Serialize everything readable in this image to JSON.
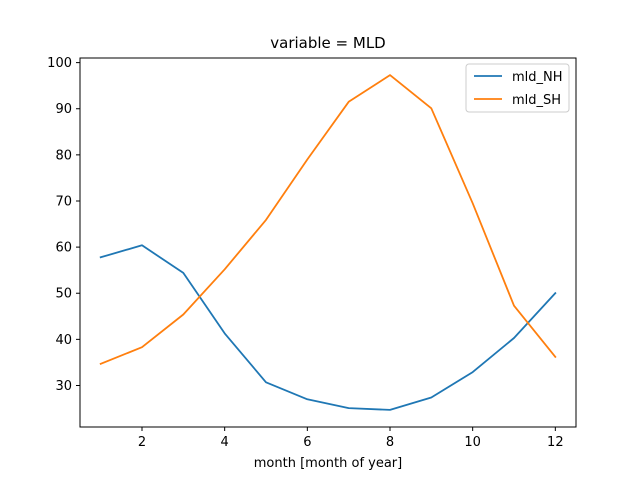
{
  "chart_data": {
    "type": "line",
    "title": "variable = MLD",
    "xlabel": "month [month of year]",
    "ylabel": "",
    "x": [
      1,
      2,
      3,
      4,
      5,
      6,
      7,
      8,
      9,
      10,
      11,
      12
    ],
    "xlim": [
      0.5,
      12.5
    ],
    "ylim": [
      21,
      101
    ],
    "xticks": [
      2,
      4,
      6,
      8,
      10,
      12
    ],
    "yticks": [
      30,
      40,
      50,
      60,
      70,
      80,
      90,
      100
    ],
    "grid": false,
    "legend_position": "top-right",
    "series": [
      {
        "name": "mld_NH",
        "color": "#1f77b4",
        "values": [
          57.8,
          60.4,
          54.4,
          41.3,
          30.7,
          27.0,
          25.1,
          24.7,
          27.4,
          32.9,
          40.3,
          50.0
        ]
      },
      {
        "name": "mld_SH",
        "color": "#ff7f0e",
        "values": [
          34.7,
          38.3,
          45.4,
          55.2,
          65.9,
          79.0,
          91.5,
          97.3,
          90.1,
          69.5,
          47.3,
          36.2
        ]
      }
    ]
  }
}
